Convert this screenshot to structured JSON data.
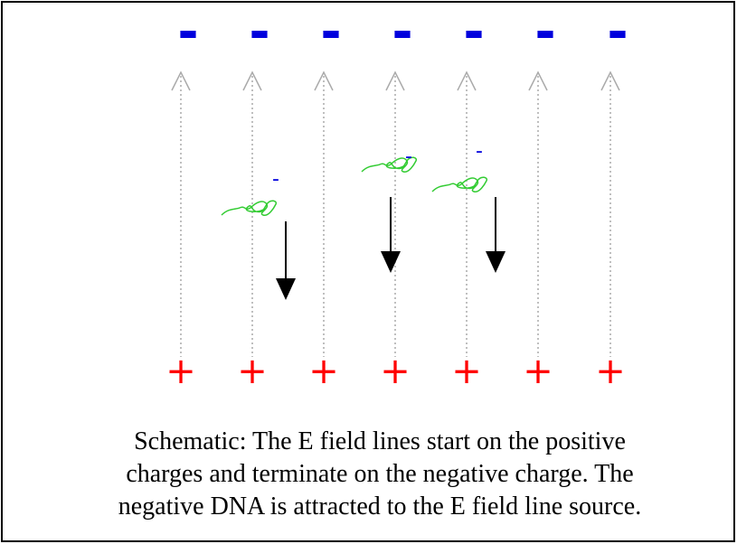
{
  "negative_charges": [
    "-",
    "-",
    "-",
    "-",
    "-",
    "-",
    "-"
  ],
  "positive_charges": [
    "+",
    "+",
    "+",
    "+",
    "+",
    "+",
    "+"
  ],
  "dna_charges": [
    "-",
    "-",
    "-"
  ],
  "caption": [
    "Schematic: The E field lines start on the positive",
    "charges and terminate on the negative charge. The",
    "negative DNA is attracted to the E field line source."
  ]
}
